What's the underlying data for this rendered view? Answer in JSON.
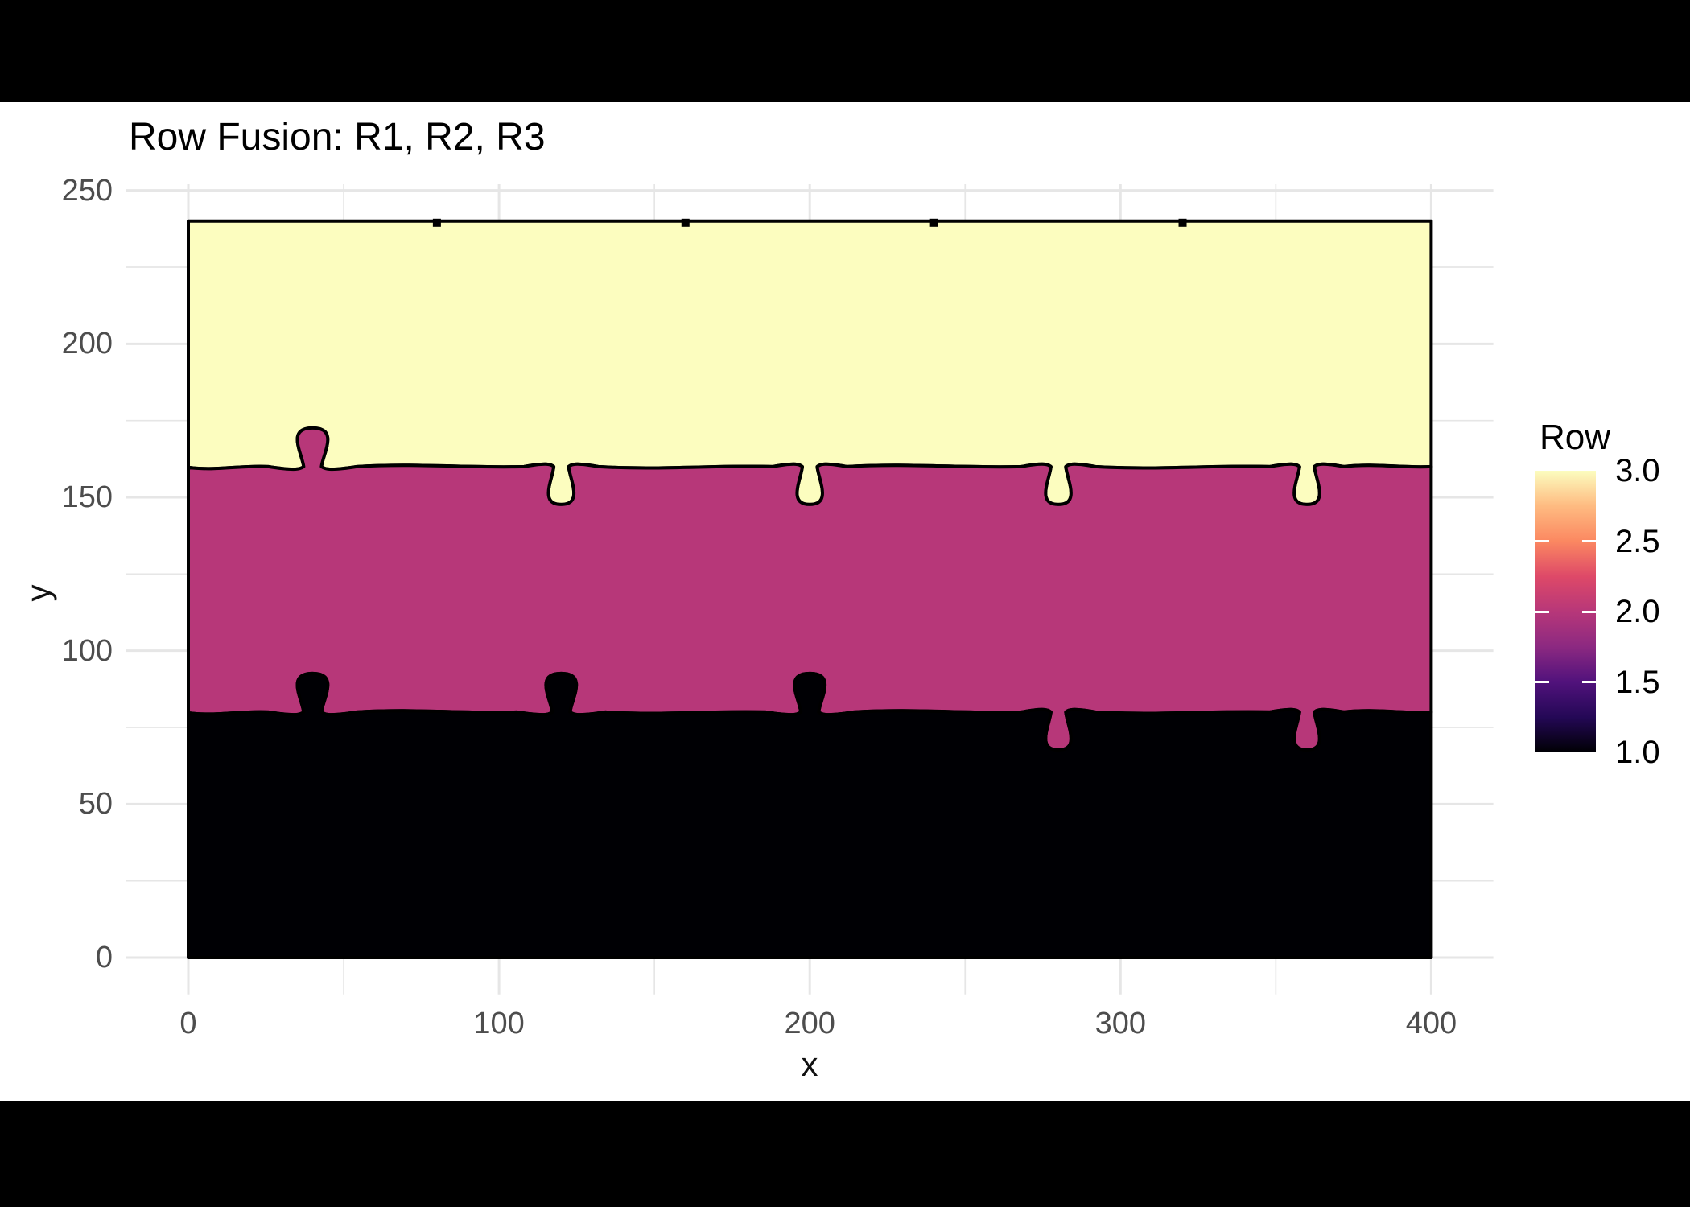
{
  "page": {
    "letterbox_color": "#000000",
    "canvas_background": "#FFFFFF"
  },
  "chart_data": {
    "type": "heatmap",
    "title": "Row Fusion: R1, R2, R3",
    "xlabel": "x",
    "ylabel": "y",
    "xlim": [
      0,
      400
    ],
    "ylim": [
      0,
      250
    ],
    "x_major_ticks": [
      0,
      100,
      200,
      300,
      400
    ],
    "x_minor_ticks": [
      50,
      150,
      250,
      350
    ],
    "y_major_ticks": [
      0,
      50,
      100,
      150,
      200,
      250
    ],
    "y_minor_ticks": [
      25,
      75,
      125,
      175,
      225
    ],
    "grid": true,
    "tile": {
      "x_range": [
        0,
        400
      ],
      "y_range": [
        0,
        240
      ],
      "outline_color": "#000000"
    },
    "rows": [
      {
        "id": "R1",
        "value": 1.0,
        "fill": "#000004",
        "y_base": 0,
        "y_top": 80,
        "tabs_up_x": [
          40,
          120,
          200
        ],
        "tabs_down_x": [
          280,
          360
        ],
        "tab_height": 12
      },
      {
        "id": "R2",
        "value": 2.0,
        "fill": "#B73779",
        "y_base": 80,
        "y_top": 160,
        "tabs_up_x": [
          40
        ],
        "tabs_down_x": [
          120,
          200,
          280,
          360
        ],
        "tab_height": 13
      },
      {
        "id": "R3",
        "value": 3.0,
        "fill": "#FCFDBF",
        "y_base": 160,
        "y_top": 240,
        "top_edge_joints_x": [
          80,
          160,
          240,
          320
        ]
      }
    ],
    "legend": {
      "title": "Row",
      "position": "right",
      "range": [
        1.0,
        3.0
      ],
      "tick_labels": [
        "3.0",
        "2.5",
        "2.0",
        "1.5",
        "1.0"
      ],
      "tick_values": [
        3.0,
        2.5,
        2.0,
        1.5,
        1.0
      ],
      "inner_tick_values": [
        2.5,
        2.0,
        1.5
      ],
      "colormap": "magma",
      "gradient_stops": [
        {
          "at": 0.0,
          "color": "#000004"
        },
        {
          "at": 0.125,
          "color": "#240856"
        },
        {
          "at": 0.25,
          "color": "#51127C"
        },
        {
          "at": 0.375,
          "color": "#8C2981"
        },
        {
          "at": 0.5,
          "color": "#B73779"
        },
        {
          "at": 0.625,
          "color": "#DE4968"
        },
        {
          "at": 0.75,
          "color": "#FB8861"
        },
        {
          "at": 0.875,
          "color": "#FEBB81"
        },
        {
          "at": 1.0,
          "color": "#FCFDBF"
        }
      ]
    },
    "style": {
      "grid_color": "#E6E6E6",
      "axis_text_color": "#4D4D4D",
      "title_color": "#000000",
      "axis_title_color": "#111111",
      "legend_text_color": "#000000",
      "outline_color": "#000000"
    }
  }
}
